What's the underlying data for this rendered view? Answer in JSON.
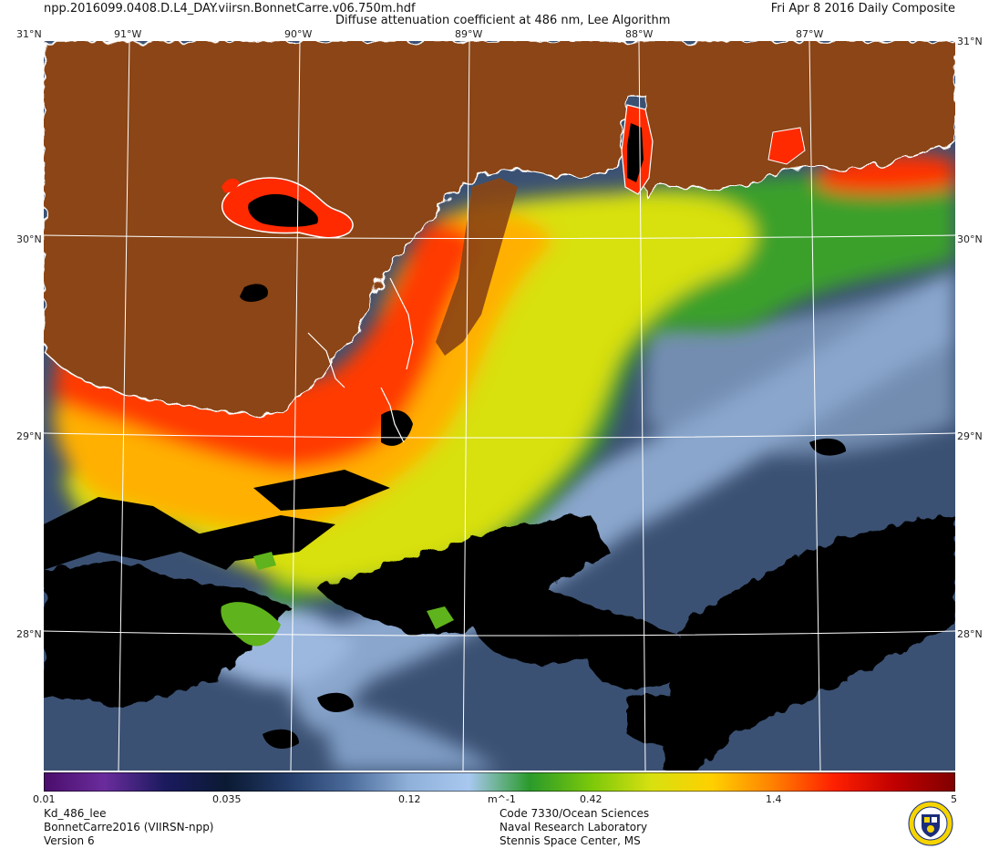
{
  "header": {
    "filename": "npp.2016099.0408.D.L4_DAY.viirsn.BonnetCarre.v06.750m.hdf",
    "title": "Diffuse attenuation coefficient at 486 nm, Lee Algorithm",
    "date": "Fri Apr  8 2016 Daily Composite"
  },
  "axes": {
    "lon_labels": [
      "91°W",
      "90°W",
      "89°W",
      "88°W",
      "87°W"
    ],
    "lat_labels": [
      "31°N",
      "30°N",
      "29°N",
      "28°N"
    ],
    "corner_tr": "31°N"
  },
  "colorbar": {
    "ticks": [
      "0.01",
      "0.035",
      "0.12",
      "0.42",
      "1.4",
      "5"
    ],
    "unit": "m^-1",
    "colors": [
      "#4a0d6b",
      "#6a2c9c",
      "#1a1a5e",
      "#0b1a33",
      "#223a66",
      "#4a6a9a",
      "#8fb0d8",
      "#a8c8f0",
      "#2a9a2a",
      "#7ac80a",
      "#d8e010",
      "#ffd000",
      "#ff8000",
      "#ff2000",
      "#c00000",
      "#800000"
    ]
  },
  "footer": {
    "left": [
      "Kd_486_lee",
      "BonnetCarre2016 (VIIRSN-npp)",
      "Version 6"
    ],
    "center": [
      "Code 7330/Ocean Sciences",
      "Naval Research Laboratory",
      "Stennis Space Center, MS"
    ]
  },
  "map_colors": {
    "land": "#8b4513",
    "cloud": "#000000",
    "clear_water": "#3b5173",
    "coast": "#ffffff"
  }
}
